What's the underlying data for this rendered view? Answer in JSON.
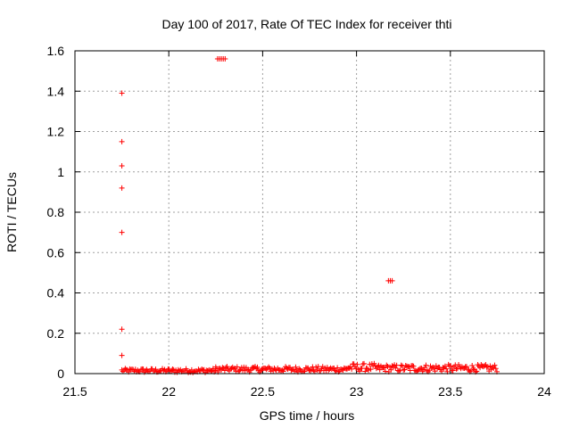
{
  "chart_data": {
    "type": "scatter",
    "title": "Day 100 of 2017, Rate Of TEC Index for receiver thti",
    "xlabel": "GPS time / hours",
    "ylabel": "ROTI / TECUs",
    "xlim": [
      21.5,
      24
    ],
    "ylim": [
      0,
      1.6
    ],
    "x_ticks": [
      "21.5",
      "22",
      "22.5",
      "23",
      "23.5",
      "24"
    ],
    "y_ticks": [
      "0",
      "0.2",
      "0.4",
      "0.6",
      "0.8",
      "1",
      "1.2",
      "1.4",
      "1.6"
    ],
    "grid": true,
    "legend": "none",
    "marker": "plus",
    "colors": {
      "points": "#ff0000",
      "grid": "#a0a0a0",
      "axes": "#000000"
    },
    "outliers": [
      {
        "x": 21.75,
        "y": 1.39
      },
      {
        "x": 21.75,
        "y": 1.15
      },
      {
        "x": 21.75,
        "y": 1.03
      },
      {
        "x": 21.75,
        "y": 0.92
      },
      {
        "x": 21.75,
        "y": 0.7
      },
      {
        "x": 21.75,
        "y": 0.22
      },
      {
        "x": 21.75,
        "y": 0.09
      },
      {
        "x": 22.26,
        "y": 1.56
      },
      {
        "x": 22.27,
        "y": 1.56
      },
      {
        "x": 22.28,
        "y": 1.56
      },
      {
        "x": 22.29,
        "y": 1.56
      },
      {
        "x": 22.3,
        "y": 1.56
      },
      {
        "x": 23.17,
        "y": 0.46
      },
      {
        "x": 23.18,
        "y": 0.46
      },
      {
        "x": 23.19,
        "y": 0.46
      }
    ],
    "baseline_series": [
      {
        "x_start": 21.75,
        "x_end": 22.25,
        "y_min": 0.005,
        "y_max": 0.025
      },
      {
        "x_start": 22.25,
        "x_end": 22.95,
        "y_min": 0.008,
        "y_max": 0.035
      },
      {
        "x_start": 22.95,
        "x_end": 23.1,
        "y_min": 0.01,
        "y_max": 0.05
      },
      {
        "x_start": 23.1,
        "x_end": 23.75,
        "y_min": 0.008,
        "y_max": 0.045
      }
    ]
  }
}
